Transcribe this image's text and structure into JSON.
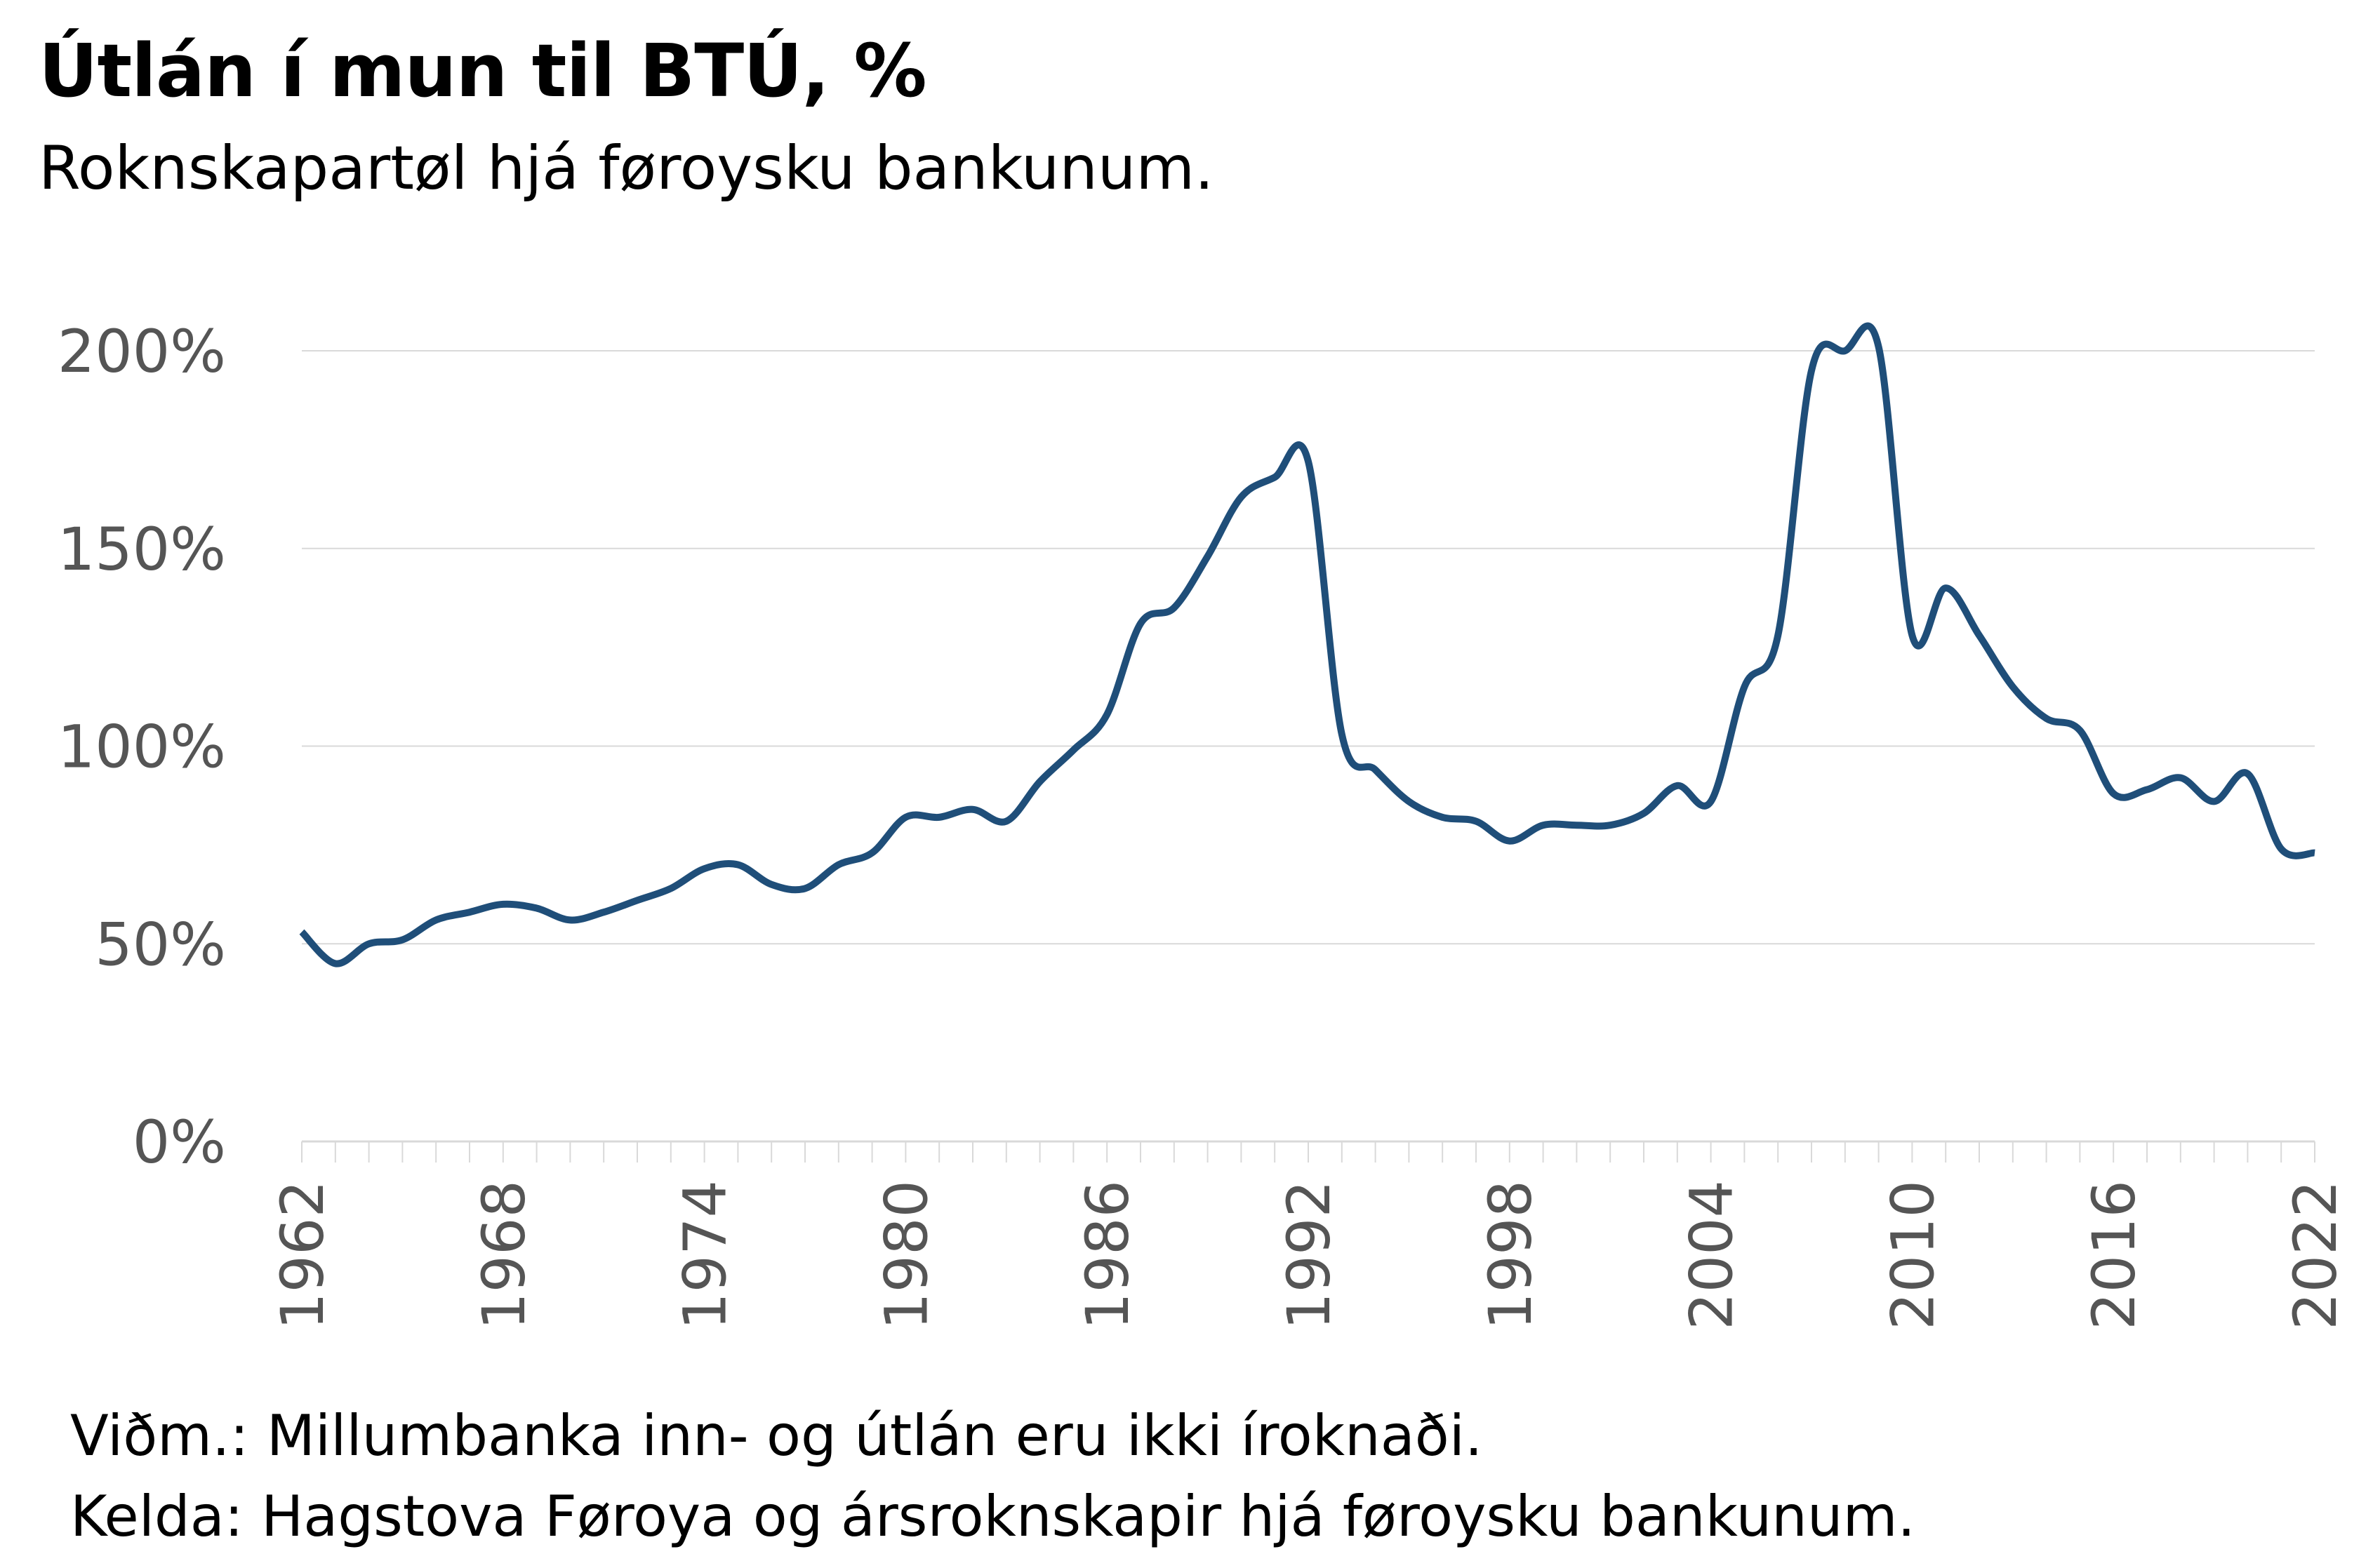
{
  "title": "Útlán í mun til BTÚ, %",
  "subtitle": "Roknskapartøl hjá føroysku bankunum.",
  "note": "Viðm.: Millumbanka inn- og útlán eru ikki íroknaði.",
  "source": "Kelda: Hagstova Føroya og ársroknskapir hjá føroysku bankunum.",
  "colors": {
    "line": "#1f4e79",
    "grid": "#d9d9d9",
    "tick_text": "#555555"
  },
  "chart_data": {
    "type": "line",
    "title": "Útlán í mun til BTÚ, %",
    "xlabel": "",
    "ylabel": "",
    "xlim": [
      1962,
      2022
    ],
    "ylim": [
      0,
      200
    ],
    "grid": true,
    "legend": "none",
    "y_ticks": [
      0,
      50,
      100,
      150,
      200
    ],
    "y_tick_labels": [
      "0%",
      "50%",
      "100%",
      "150%",
      "200%"
    ],
    "x_tick_labels": [
      "1962",
      "1968",
      "1974",
      "1980",
      "1986",
      "1992",
      "1998",
      "2004",
      "2010",
      "2016",
      "2022"
    ],
    "series": [
      {
        "x": [
          1962,
          1963,
          1964,
          1965,
          1966,
          1967,
          1968,
          1969,
          1970,
          1971,
          1972,
          1973,
          1974,
          1975,
          1976,
          1977,
          1978,
          1979,
          1980,
          1981,
          1982,
          1983,
          1984,
          1985,
          1986,
          1987,
          1988,
          1989,
          1990,
          1991,
          1992,
          1993,
          1994,
          1995,
          1996,
          1997,
          1998,
          1999,
          2000,
          2001,
          2002,
          2003,
          2004,
          2005,
          2006,
          2007,
          2008,
          2009,
          2010,
          2011,
          2012,
          2013,
          2014,
          2015,
          2016,
          2017,
          2018,
          2019,
          2020,
          2021,
          2022
        ],
        "y": [
          53,
          45,
          50,
          51,
          56,
          58,
          60,
          59,
          56,
          58,
          61,
          64,
          69,
          70,
          65,
          64,
          70,
          73,
          82,
          82,
          84,
          81,
          91,
          99,
          108,
          131,
          135,
          148,
          163,
          168,
          172,
          103,
          94,
          86,
          82,
          81,
          76,
          80,
          80,
          80,
          83,
          90,
          86,
          115,
          128,
          195,
          200,
          201,
          128,
          140,
          128,
          115,
          107,
          104,
          88,
          89,
          92,
          86,
          93,
          74,
          73
        ]
      }
    ]
  }
}
